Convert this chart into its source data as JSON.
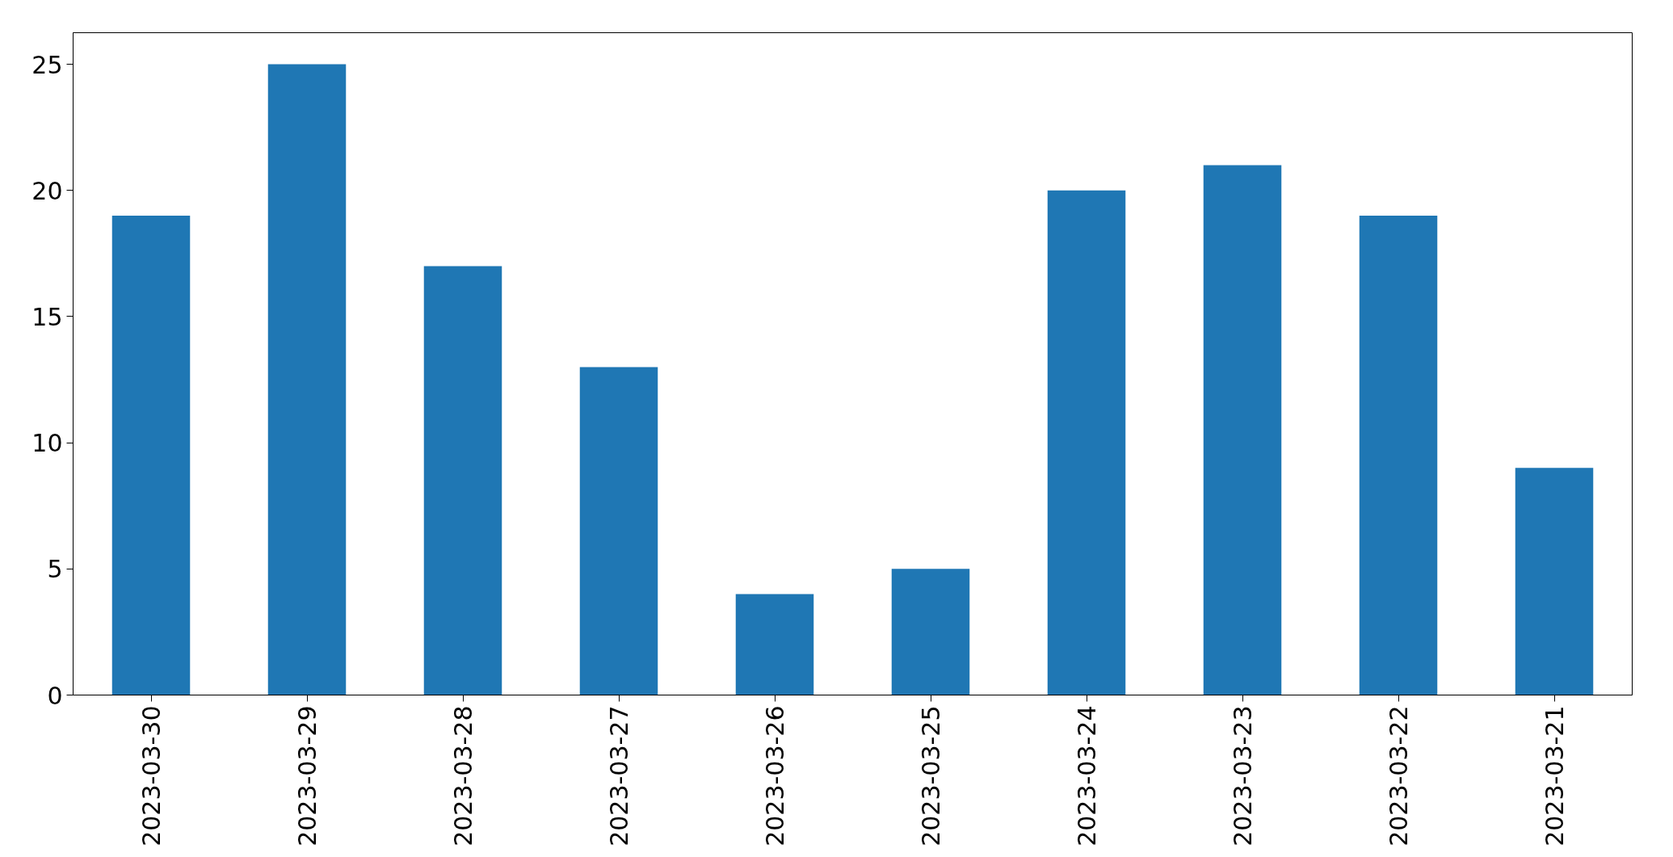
{
  "chart_data": {
    "type": "bar",
    "categories": [
      "2023-03-30",
      "2023-03-29",
      "2023-03-28",
      "2023-03-27",
      "2023-03-26",
      "2023-03-25",
      "2023-03-24",
      "2023-03-23",
      "2023-03-22",
      "2023-03-21"
    ],
    "values": [
      19,
      25,
      17,
      13,
      4,
      5,
      20,
      21,
      19,
      9
    ],
    "color": "#1f77b4",
    "ylim": [
      0,
      26.25
    ],
    "yticks": [
      0,
      5,
      10,
      15,
      20,
      25
    ],
    "grid": false
  }
}
